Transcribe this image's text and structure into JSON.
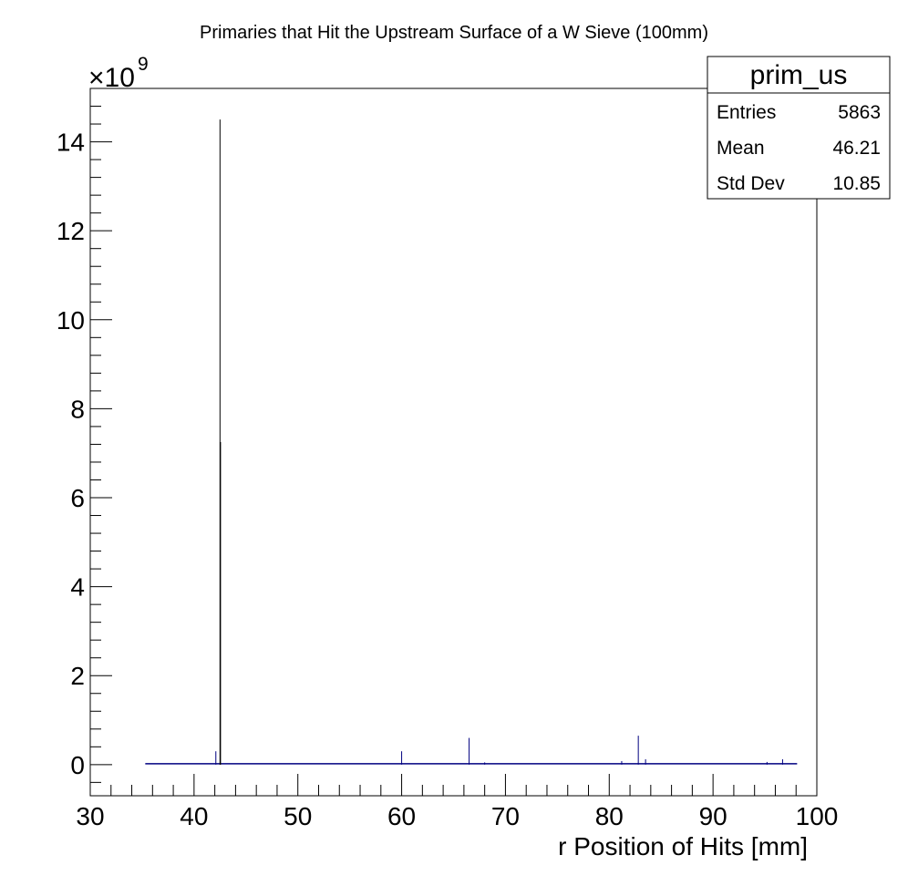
{
  "chart_data": {
    "type": "histogram",
    "title": "Primaries that Hit the Upstream Surface of a W Sieve (100mm)",
    "xlabel": "r Position of Hits [mm]",
    "ylabel": "",
    "y_multiplier": "×10",
    "y_multiplier_exp": "9",
    "xlim": [
      30,
      100
    ],
    "ylim": [
      -0.7,
      15.2
    ],
    "x_ticks": [
      "30",
      "40",
      "50",
      "60",
      "70",
      "80",
      "90",
      "100"
    ],
    "y_ticks": [
      "0",
      "2",
      "4",
      "6",
      "8",
      "10",
      "12",
      "14"
    ],
    "grid": false,
    "line_color": "#000080",
    "spikes": [
      {
        "x": 42.1,
        "y": 0.3
      },
      {
        "x": 42.5,
        "y": 14.5
      },
      {
        "x": 42.55,
        "y": 7.25
      },
      {
        "x": 60.0,
        "y": 0.3
      },
      {
        "x": 66.5,
        "y": 0.6
      },
      {
        "x": 68.0,
        "y": 0.05
      },
      {
        "x": 81.2,
        "y": 0.08
      },
      {
        "x": 82.8,
        "y": 0.65
      },
      {
        "x": 83.5,
        "y": 0.12
      },
      {
        "x": 95.2,
        "y": 0.06
      },
      {
        "x": 96.7,
        "y": 0.12
      }
    ],
    "baseline": {
      "x_start": 35.3,
      "x_end": 98.1,
      "y": 0.02
    },
    "stats": {
      "name": "prim_us",
      "rows": [
        {
          "label": "Entries",
          "value": "5863"
        },
        {
          "label": "Mean",
          "value": "46.21"
        },
        {
          "label": "Std Dev",
          "value": "10.85"
        }
      ]
    }
  }
}
